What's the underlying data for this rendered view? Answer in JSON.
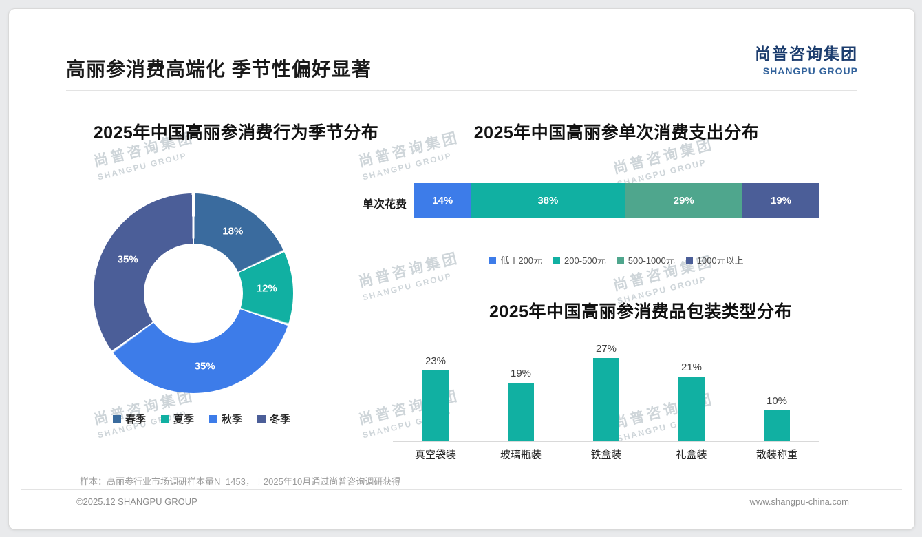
{
  "page": {
    "title": "高丽参消费高端化 季节性偏好显著",
    "logo_cn": "尚普咨询集团",
    "logo_en": "SHANGPU GROUP",
    "watermark_cn": "尚普咨询集团",
    "watermark_en": "SHANGPU GROUP",
    "footnote": "样本：高丽参行业市场调研样本量N=1453，于2025年10月通过尚普咨询调研获得",
    "footer_left": "©2025.12 SHANGPU GROUP",
    "footer_right": "www.shangpu-china.com"
  },
  "chart_data": [
    {
      "type": "pie",
      "subtype": "donut",
      "title": "2025年中国高丽参消费行为季节分布",
      "categories": [
        "春季",
        "夏季",
        "秋季",
        "冬季"
      ],
      "values": [
        18,
        12,
        35,
        35
      ],
      "unit": "%",
      "colors": [
        "#3a6b9e",
        "#11b0a2",
        "#3d7ce9",
        "#4b5e98"
      ],
      "legend_position": "bottom",
      "labels_inside": true
    },
    {
      "type": "bar",
      "subtype": "stacked-horizontal",
      "title": "2025年中国高丽参单次消费支出分布",
      "row_label": "单次花费",
      "categories": [
        "低于200元",
        "200-500元",
        "500-1000元",
        "1000元以上"
      ],
      "values": [
        14,
        38,
        29,
        19
      ],
      "unit": "%",
      "colors": [
        "#3d7ce9",
        "#11b0a2",
        "#4fa68d",
        "#4b5e98"
      ],
      "legend_position": "bottom"
    },
    {
      "type": "bar",
      "subtype": "vertical",
      "title": "2025年中国高丽参消费品包装类型分布",
      "categories": [
        "真空袋装",
        "玻璃瓶装",
        "铁盒装",
        "礼盒装",
        "散装称重"
      ],
      "values": [
        23,
        19,
        27,
        21,
        10
      ],
      "unit": "%",
      "color": "#11b0a2",
      "ylim": [
        0,
        30
      ],
      "grid": false,
      "value_labels": "above"
    }
  ]
}
